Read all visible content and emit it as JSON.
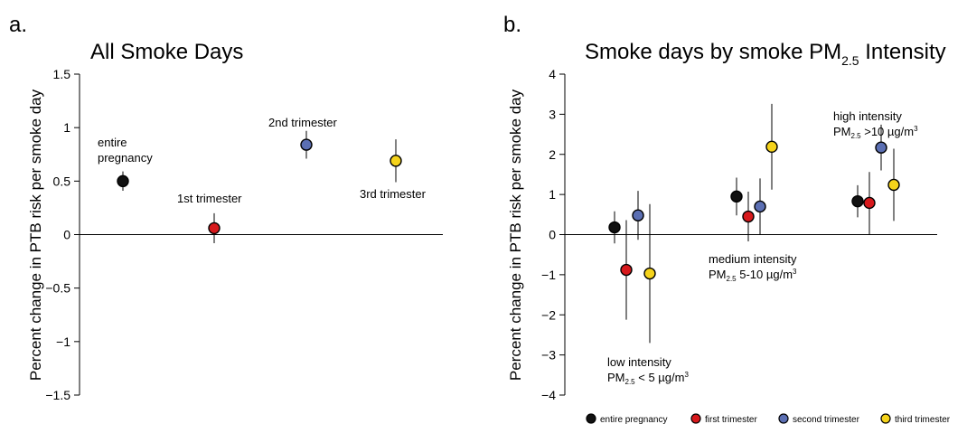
{
  "panels": [
    {
      "letter": "a.",
      "title": "All Smoke Days",
      "ylabel": "Percent change in PTB risk per smoke day",
      "annotations": {
        "entire": [
          "entire",
          "pregnancy"
        ],
        "first": "1st trimester",
        "second": "2nd trimester",
        "third": "3rd trimester"
      }
    },
    {
      "letter": "b.",
      "title_main": "Smoke days by smoke PM",
      "title_sub": "2.5",
      "title_end": " Intensity",
      "ylabel": "Percent change in PTB risk per smoke day",
      "groups": {
        "low": {
          "name": "low intensity",
          "pm": "PM",
          "sub": "2.5",
          "rest": " < 5 µg/m",
          "sup": "3"
        },
        "medium": {
          "name": "medium intensity",
          "pm": "PM",
          "sub": "2.5",
          "rest": " 5-10 µg/m",
          "sup": "3"
        },
        "high": {
          "name": "high intensity",
          "pm": "PM",
          "sub": "2.5",
          "rest": " >10 µg/m",
          "sup": "3"
        }
      }
    }
  ],
  "legend": [
    {
      "label": "entire pregnancy",
      "color": "#111111"
    },
    {
      "label": "first trimester",
      "color": "#d7191c"
    },
    {
      "label": "second trimester",
      "color": "#5b6fb3"
    },
    {
      "label": "third trimester",
      "color": "#f5d31b"
    }
  ],
  "chart_data": [
    {
      "type": "scatter",
      "title": "All Smoke Days",
      "ylabel": "Percent change in PTB risk per smoke day",
      "ylim": [
        -1.5,
        1.5
      ],
      "yticks": [
        1.5,
        1,
        0.5,
        0,
        -0.5,
        -1,
        -1.5
      ],
      "yticklabels": [
        "1.5",
        "1",
        "0.5",
        "0",
        "−0.5",
        "−1",
        "−1.5"
      ],
      "grid": false,
      "series": [
        {
          "name": "entire pregnancy",
          "estimate": 0.5,
          "ci": [
            0.41,
            0.59
          ]
        },
        {
          "name": "first trimester",
          "estimate": 0.06,
          "ci": [
            -0.08,
            0.2
          ]
        },
        {
          "name": "second trimester",
          "estimate": 0.84,
          "ci": [
            0.71,
            0.97
          ]
        },
        {
          "name": "third trimester",
          "estimate": 0.69,
          "ci": [
            0.49,
            0.89
          ]
        }
      ]
    },
    {
      "type": "scatter",
      "title": "Smoke days by smoke PM2.5 Intensity",
      "ylabel": "Percent change in PTB risk per smoke day",
      "ylim": [
        -4,
        4
      ],
      "yticks": [
        4,
        3,
        2,
        1,
        0,
        -1,
        -2,
        -3,
        -4
      ],
      "yticklabels": [
        "4",
        "3",
        "2",
        "1",
        "0",
        "−1",
        "−2",
        "−3",
        "−4"
      ],
      "grid": false,
      "legend_position": "bottom-right",
      "groups": [
        "low intensity",
        "medium intensity",
        "high intensity"
      ],
      "series": [
        {
          "name": "entire pregnancy",
          "values": [
            0.18,
            0.95,
            0.83
          ],
          "ci": [
            [
              -0.22,
              0.58
            ],
            [
              0.48,
              1.42
            ],
            [
              0.43,
              1.23
            ]
          ]
        },
        {
          "name": "first trimester",
          "values": [
            -0.88,
            0.45,
            0.79
          ],
          "ci": [
            [
              -2.12,
              0.36
            ],
            [
              -0.17,
              1.07
            ],
            [
              0.0,
              1.56
            ]
          ]
        },
        {
          "name": "second trimester",
          "values": [
            0.48,
            0.7,
            2.17
          ],
          "ci": [
            [
              -0.13,
              1.09
            ],
            [
              0.0,
              1.4
            ],
            [
              1.6,
              2.74
            ]
          ]
        },
        {
          "name": "third trimester",
          "values": [
            -0.97,
            2.19,
            1.24
          ],
          "ci": [
            [
              -2.7,
              0.76
            ],
            [
              1.12,
              3.26
            ],
            [
              0.34,
              2.14
            ]
          ]
        }
      ]
    }
  ]
}
